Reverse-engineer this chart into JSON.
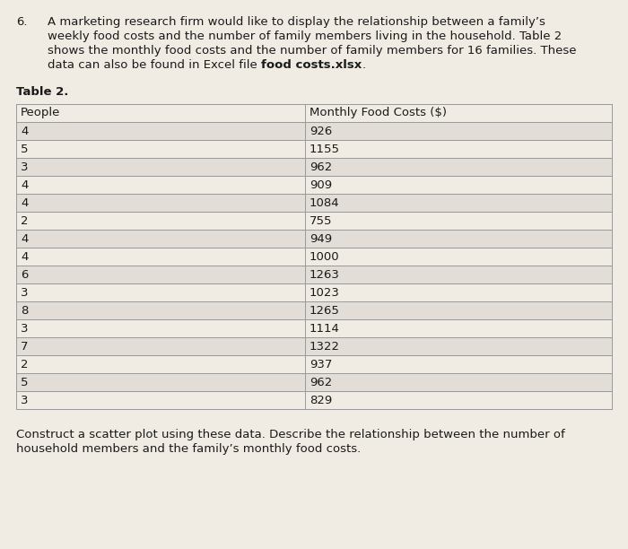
{
  "title_number": "6.",
  "para_lines": [
    "A marketing research firm would like to display the relationship between a family’s",
    "weekly food costs and the number of family members living in the household. Table 2",
    "shows the monthly food costs and the number of family members for 16 families. These",
    "data can also be found in Excel file food costs.xlsx."
  ],
  "bold_phrase": "food costs.xlsx",
  "pre_bold": "data can also be found in Excel file ",
  "post_bold": ".",
  "table_title": "Table 2.",
  "col1_header": "People",
  "col2_header": "Monthly Food Costs ($)",
  "people": [
    4,
    5,
    3,
    4,
    4,
    2,
    4,
    4,
    6,
    3,
    8,
    3,
    7,
    2,
    5,
    3
  ],
  "costs": [
    926,
    1155,
    962,
    909,
    1084,
    755,
    949,
    1000,
    1263,
    1023,
    1265,
    1114,
    1322,
    937,
    962,
    829
  ],
  "footer_lines": [
    "Construct a scatter plot using these data. Describe the relationship between the number of",
    "household members and the family’s monthly food costs."
  ],
  "bg_color": "#f0ece4",
  "text_color": "#1a1a1a",
  "row_color_odd": "#f0ece4",
  "row_color_even": "#e2ddd6",
  "line_color": "#999999",
  "font_size_body": 9.5,
  "font_size_table": 9.5,
  "font_size_title_num": 9.5
}
